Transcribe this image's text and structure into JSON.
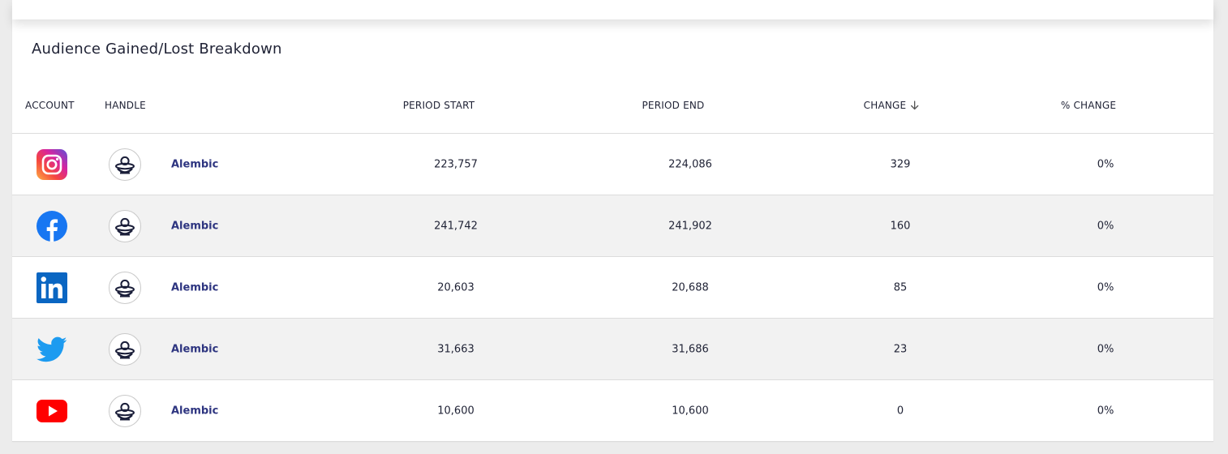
{
  "panel": {
    "title": "Audience Gained/Lost Breakdown"
  },
  "table": {
    "columns": {
      "account": "ACCOUNT",
      "handle": "HANDLE",
      "period_start": "PERIOD START",
      "period_end": "PERIOD END",
      "change": "CHANGE",
      "pct_change": "% CHANGE"
    },
    "sort": {
      "column": "change",
      "direction": "descending",
      "icon": "arrow-down-icon"
    },
    "rows": [
      {
        "platform": "instagram",
        "icon": "instagram-icon",
        "handle": "Alembic",
        "period_start": "223,757",
        "period_end": "224,086",
        "change": "329",
        "pct_change": "0%"
      },
      {
        "platform": "facebook",
        "icon": "facebook-icon",
        "handle": "Alembic",
        "period_start": "241,742",
        "period_end": "241,902",
        "change": "160",
        "pct_change": "0%"
      },
      {
        "platform": "linkedin",
        "icon": "linkedin-icon",
        "handle": "Alembic",
        "period_start": "20,603",
        "period_end": "20,688",
        "change": "85",
        "pct_change": "0%"
      },
      {
        "platform": "twitter",
        "icon": "twitter-icon",
        "handle": "Alembic",
        "period_start": "31,663",
        "period_end": "31,686",
        "change": "23",
        "pct_change": "0%"
      },
      {
        "platform": "youtube",
        "icon": "youtube-icon",
        "handle": "Alembic",
        "period_start": "10,600",
        "period_end": "10,600",
        "change": "0",
        "pct_change": "0%"
      }
    ]
  },
  "colors": {
    "handle_link": "#2e3580",
    "instagram": "#d6249f",
    "facebook": "#1877f2",
    "linkedin": "#0a66c2",
    "twitter": "#1d9bf0",
    "youtube": "#ff0000",
    "row_alt": "#f2f2f2"
  }
}
